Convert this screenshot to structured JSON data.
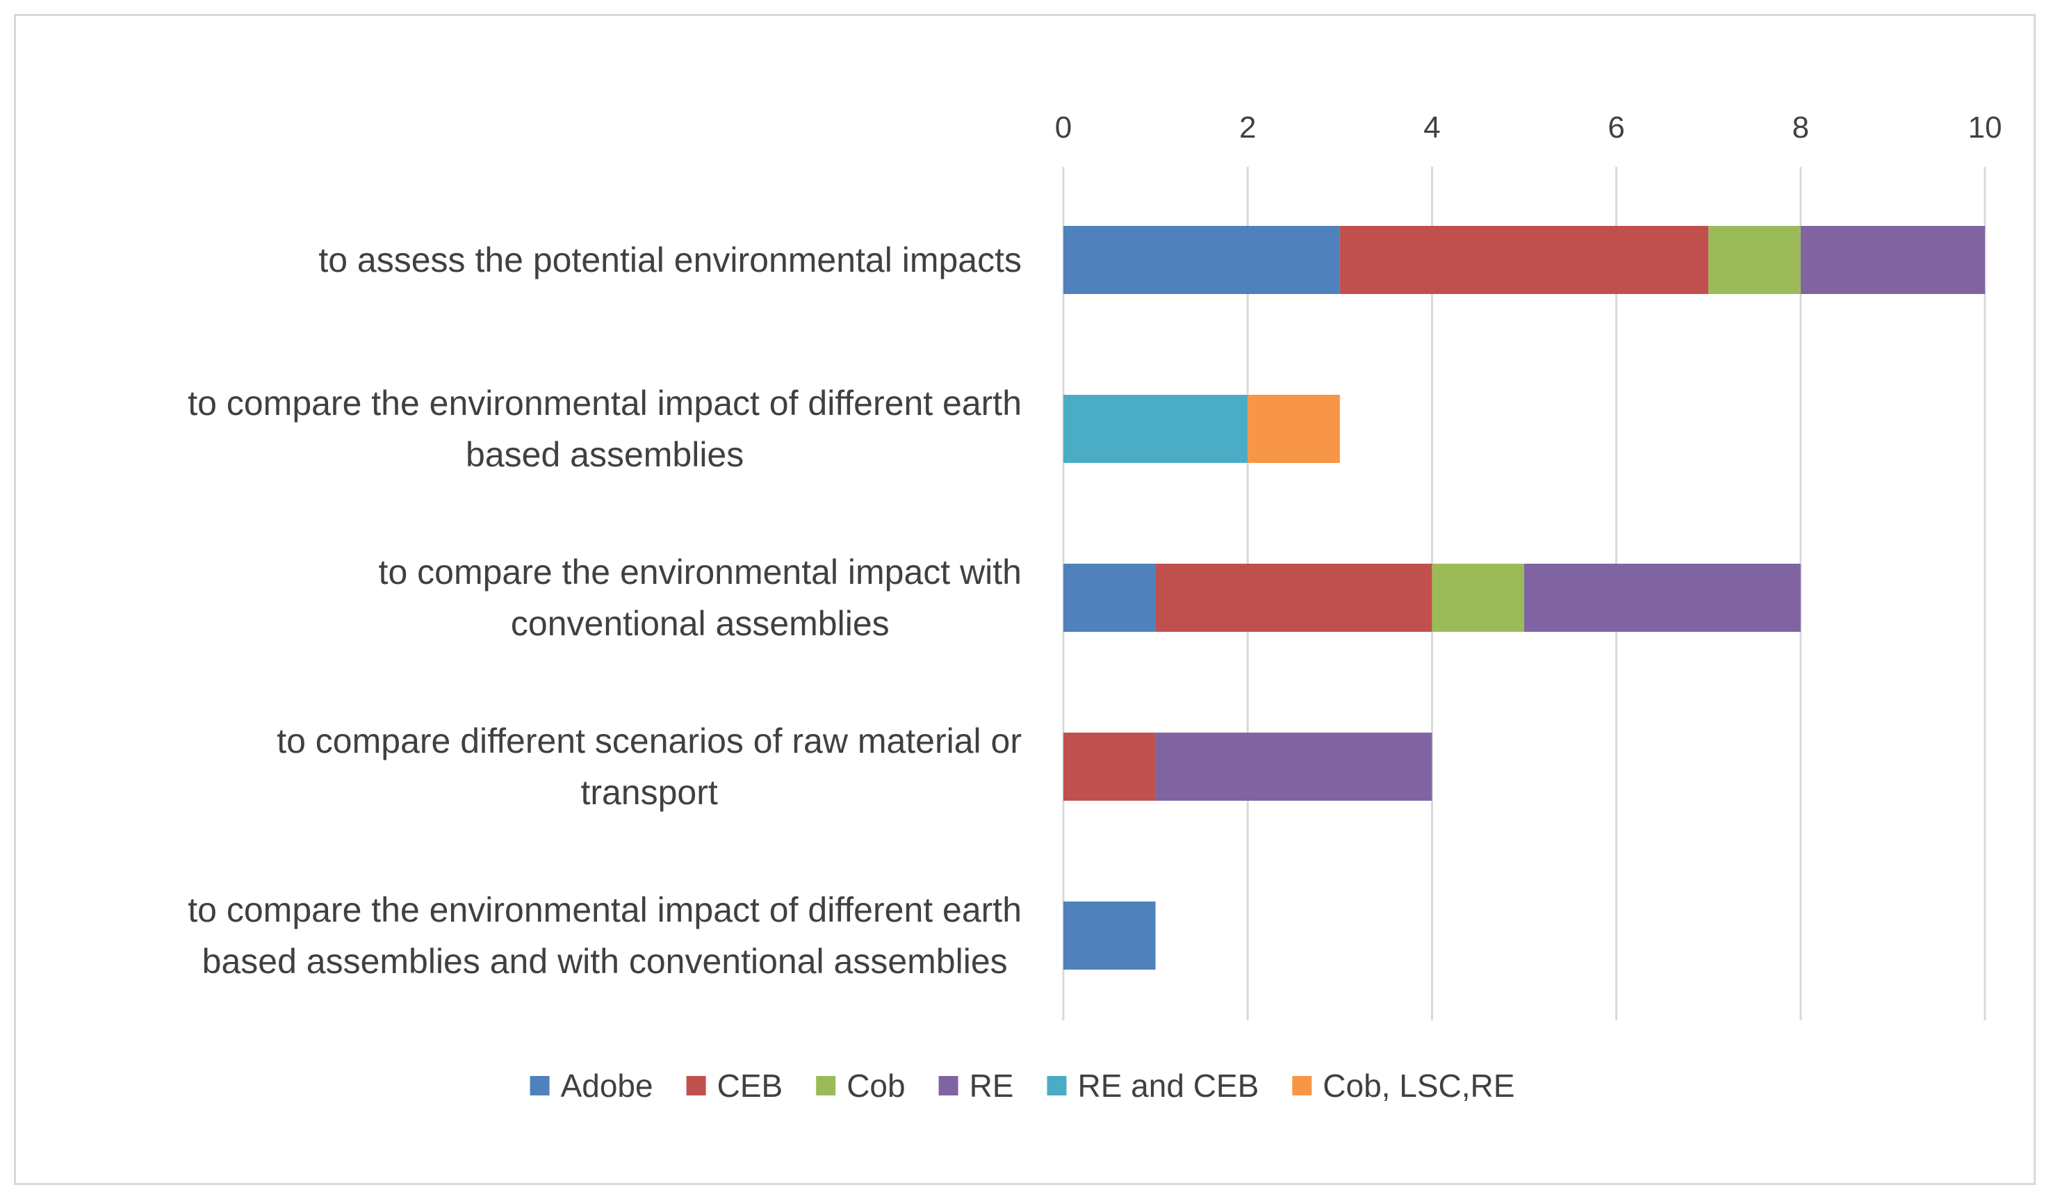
{
  "chart_data": {
    "type": "bar",
    "orientation": "horizontal",
    "stacked": true,
    "title": "",
    "xlabel": "",
    "ylabel": "",
    "xlim": [
      0,
      10
    ],
    "xticks": [
      0,
      2,
      4,
      6,
      8,
      10
    ],
    "grid": true,
    "legend_position": "bottom",
    "categories": [
      [
        "to assess the potential environmental impacts"
      ],
      [
        "to compare the environmental impact of different earth",
        "based assemblies"
      ],
      [
        "to compare the environmental impact with",
        "conventional assemblies"
      ],
      [
        "to compare different scenarios of raw material or",
        "transport"
      ],
      [
        "to compare the environmental impact of different earth",
        "based assemblies and with conventional assemblies"
      ]
    ],
    "series": [
      {
        "name": "Adobe",
        "color": "#4f81bd",
        "values": [
          3,
          0,
          1,
          0,
          1
        ]
      },
      {
        "name": "CEB",
        "color": "#c0504d",
        "values": [
          4,
          0,
          3,
          1,
          0
        ]
      },
      {
        "name": "Cob",
        "color": "#9bbb59",
        "values": [
          1,
          0,
          1,
          0,
          0
        ]
      },
      {
        "name": "RE",
        "color": "#8064a2",
        "values": [
          2,
          0,
          3,
          3,
          0
        ]
      },
      {
        "name": "RE and CEB",
        "color": "#4bacc6",
        "values": [
          0,
          2,
          0,
          0,
          0
        ]
      },
      {
        "name": "Cob, LSC,RE",
        "color": "#f79646",
        "values": [
          0,
          1,
          0,
          0,
          0
        ]
      }
    ]
  }
}
